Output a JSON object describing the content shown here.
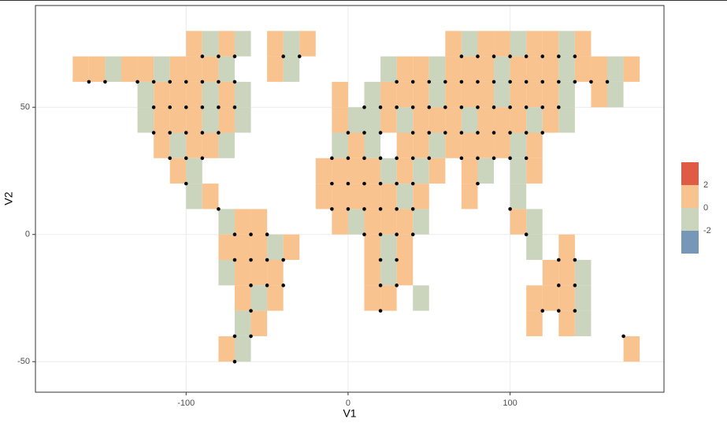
{
  "chart_data": {
    "type": "raster",
    "xlabel": "V1",
    "ylabel": "V2",
    "xlim": [
      -193,
      195
    ],
    "ylim": [
      -62,
      90
    ],
    "xticks": [
      -100,
      0,
      100
    ],
    "yticks": [
      -50,
      0,
      50
    ],
    "grid": true,
    "cell_size": 10,
    "point_color": "#000000",
    "legend": {
      "position": "right",
      "breaks": [
        2,
        0,
        -2
      ],
      "colors": [
        "#e05a44",
        "#f9c38f",
        "#cbd5bd",
        "#7697b8"
      ]
    },
    "rows": [
      {
        "y": 75,
        "x": [
          -95,
          -85,
          -75,
          -65,
          -45,
          -35,
          -25,
          65,
          75,
          85,
          95,
          105,
          115,
          125,
          135,
          145
        ],
        "values": [
          0.6,
          -0.5,
          1.1,
          -0.8,
          0.4,
          -1.2,
          0.7,
          0.9,
          -0.3,
          1.3,
          0.5,
          -0.6,
          0.8,
          1.0,
          -0.4,
          0.3
        ]
      },
      {
        "y": 65,
        "x": [
          -165,
          -155,
          -145,
          -135,
          -125,
          -115,
          -105,
          -95,
          -85,
          -75,
          -45,
          -35,
          25,
          35,
          45,
          55,
          65,
          75,
          85,
          95,
          105,
          115,
          125,
          135,
          145,
          155,
          165,
          175
        ],
        "values": [
          0.8,
          1.2,
          -0.4,
          0.6,
          1.1,
          -0.7,
          0.9,
          1.4,
          0.3,
          -0.5,
          0.7,
          -0.9,
          -0.6,
          0.5,
          1.0,
          -0.3,
          0.8,
          1.2,
          0.4,
          -0.8,
          0.9,
          1.1,
          0.6,
          -0.4,
          1.3,
          0.7,
          -0.5,
          0.9
        ]
      },
      {
        "y": 55,
        "x": [
          -125,
          -115,
          -105,
          -95,
          -85,
          -75,
          -65,
          -5,
          15,
          25,
          35,
          45,
          55,
          65,
          75,
          85,
          95,
          105,
          115,
          125,
          135,
          155,
          165
        ],
        "values": [
          -0.9,
          0.7,
          1.3,
          0.5,
          -0.4,
          0.8,
          -0.7,
          0.6,
          -0.8,
          0.9,
          1.2,
          0.4,
          -0.5,
          1.1,
          0.7,
          0.3,
          -0.6,
          1.4,
          0.8,
          0.5,
          -0.3,
          0.9,
          -0.7
        ]
      },
      {
        "y": 45,
        "x": [
          -125,
          -115,
          -105,
          -95,
          -85,
          -75,
          -65,
          -5,
          5,
          15,
          25,
          35,
          45,
          55,
          65,
          75,
          85,
          95,
          105,
          115,
          125,
          135
        ],
        "values": [
          -0.7,
          1.0,
          0.6,
          1.3,
          -0.5,
          0.8,
          -0.9,
          0.4,
          -0.6,
          -0.8,
          0.7,
          -0.4,
          0.9,
          1.2,
          0.5,
          -0.7,
          1.1,
          0.6,
          0.8,
          -0.5,
          1.0,
          -0.6
        ]
      },
      {
        "y": 35,
        "x": [
          -115,
          -105,
          -95,
          -85,
          -75,
          -5,
          5,
          15,
          35,
          45,
          55,
          65,
          75,
          85,
          95,
          105,
          115
        ],
        "values": [
          0.9,
          -0.6,
          1.2,
          0.7,
          -0.8,
          -0.5,
          0.6,
          -0.7,
          0.8,
          1.1,
          -0.4,
          0.7,
          1.3,
          0.5,
          0.9,
          -0.6,
          0.4
        ]
      },
      {
        "y": 25,
        "x": [
          -105,
          -95,
          -15,
          -5,
          5,
          15,
          25,
          35,
          45,
          55,
          75,
          85,
          105,
          115
        ],
        "values": [
          0.7,
          -0.9,
          0.8,
          1.2,
          0.5,
          1.0,
          -0.4,
          0.9,
          -0.6,
          0.6,
          1.1,
          -0.5,
          -0.8,
          0.7
        ]
      },
      {
        "y": 15,
        "x": [
          -95,
          -85,
          -15,
          -5,
          5,
          15,
          25,
          35,
          45,
          75,
          105
        ],
        "values": [
          -0.6,
          0.5,
          1.1,
          0.7,
          1.3,
          0.9,
          0.6,
          -0.5,
          0.8,
          1.0,
          -0.7
        ]
      },
      {
        "y": 5,
        "x": [
          -75,
          -65,
          -55,
          -5,
          5,
          15,
          25,
          35,
          45,
          105,
          115
        ],
        "values": [
          -0.8,
          0.9,
          0.6,
          1.2,
          -0.4,
          0.8,
          1.1,
          0.5,
          -0.6,
          0.7,
          -0.9
        ]
      },
      {
        "y": -5,
        "x": [
          -75,
          -65,
          -55,
          -45,
          -35,
          15,
          25,
          35,
          115,
          135
        ],
        "values": [
          0.7,
          1.2,
          0.5,
          -0.6,
          0.9,
          1.0,
          -0.5,
          0.8,
          -0.7,
          0.6
        ]
      },
      {
        "y": -15,
        "x": [
          -75,
          -65,
          -55,
          -45,
          15,
          25,
          35,
          125,
          135,
          145
        ],
        "values": [
          -0.5,
          0.8,
          1.1,
          0.6,
          0.9,
          -0.6,
          0.7,
          1.0,
          0.5,
          -0.8
        ]
      },
      {
        "y": -25,
        "x": [
          -65,
          -55,
          -45,
          15,
          25,
          45,
          115,
          125,
          135,
          145
        ],
        "values": [
          0.6,
          -0.7,
          0.9,
          1.2,
          0.5,
          -0.6,
          0.8,
          1.1,
          0.7,
          -0.5
        ]
      },
      {
        "y": -35,
        "x": [
          -65,
          -55,
          115,
          135,
          145
        ],
        "values": [
          -0.8,
          0.7,
          0.6,
          1.0,
          -0.4
        ]
      },
      {
        "y": -45,
        "x": [
          -75,
          -65,
          175
        ],
        "values": [
          0.5,
          -0.6,
          0.8
        ]
      }
    ],
    "points": [
      {
        "y": 70,
        "x": [
          -90,
          -80,
          -70,
          -40,
          -30,
          70,
          80,
          90,
          100,
          110,
          120,
          130,
          140
        ]
      },
      {
        "y": 60,
        "x": [
          -160,
          -150,
          -130,
          -120,
          -110,
          -100,
          -90,
          -80,
          -70,
          30,
          40,
          50,
          60,
          70,
          80,
          90,
          100,
          110,
          120,
          130,
          140,
          150,
          160
        ]
      },
      {
        "y": 50,
        "x": [
          -120,
          -110,
          -100,
          -90,
          -80,
          -70,
          10,
          20,
          30,
          40,
          50,
          60,
          70,
          80,
          90,
          100,
          110,
          120,
          130
        ]
      },
      {
        "y": 40,
        "x": [
          -120,
          -110,
          -100,
          -90,
          -80,
          0,
          10,
          20,
          40,
          50,
          60,
          70,
          80,
          90,
          100,
          110,
          120
        ]
      },
      {
        "y": 30,
        "x": [
          -110,
          -100,
          -90,
          -10,
          0,
          10,
          20,
          30,
          40,
          50,
          70,
          80,
          90,
          100,
          110
        ]
      },
      {
        "y": 20,
        "x": [
          -100,
          -10,
          0,
          10,
          20,
          30,
          40,
          80
        ]
      },
      {
        "y": 10,
        "x": [
          -80,
          -10,
          0,
          10,
          20,
          30,
          40,
          100
        ]
      },
      {
        "y": 0,
        "x": [
          -70,
          -60,
          -50,
          10,
          20,
          30,
          40,
          110
        ]
      },
      {
        "y": -10,
        "x": [
          -70,
          -60,
          -50,
          -40,
          20,
          30,
          130,
          140
        ]
      },
      {
        "y": -20,
        "x": [
          -60,
          -50,
          -40,
          20,
          30,
          130,
          140
        ]
      },
      {
        "y": -30,
        "x": [
          -60,
          20,
          120,
          130,
          140
        ]
      },
      {
        "y": -40,
        "x": [
          -70,
          -60,
          170
        ]
      },
      {
        "y": -50,
        "x": [
          -70
        ]
      }
    ]
  }
}
